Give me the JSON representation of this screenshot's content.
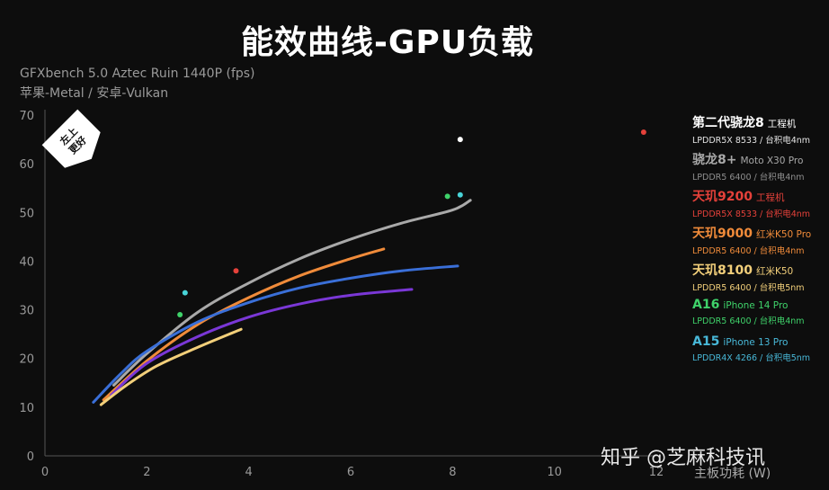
{
  "header": {
    "title": "能效曲线-GPU负载",
    "subtitle_line1": "GFXbench 5.0 Aztec Ruin 1440P (fps)",
    "subtitle_line2": "苹果-Metal / 安卓-Vulkan"
  },
  "badge": {
    "line1": "左上",
    "line2": "更好"
  },
  "watermark": "知乎 @芝麻科技讯",
  "chart_data": {
    "type": "scatter",
    "title": "能效曲线-GPU负载",
    "xlabel": "主板功耗 (W)",
    "ylabel": "",
    "xlim": [
      0,
      12
    ],
    "ylim": [
      0,
      70
    ],
    "xticks": [
      0,
      2,
      4,
      6,
      8,
      10,
      12
    ],
    "yticks": [
      0,
      10,
      20,
      30,
      40,
      50,
      60,
      70
    ],
    "grid": false,
    "legend_position": "right",
    "series": [
      {
        "name": "骁龙8+",
        "color": "#a9a9a9",
        "kind": "curve",
        "points": [
          [
            1.35,
            14.5
          ],
          [
            2.0,
            21.0
          ],
          [
            3.0,
            29.5
          ],
          [
            4.0,
            35.5
          ],
          [
            5.0,
            40.5
          ],
          [
            6.0,
            44.5
          ],
          [
            7.0,
            47.8
          ],
          [
            8.0,
            50.5
          ],
          [
            8.35,
            52.5
          ]
        ]
      },
      {
        "name": "天玑9000",
        "color": "#f08b3a",
        "kind": "curve",
        "points": [
          [
            1.15,
            11.5
          ],
          [
            2.0,
            19.5
          ],
          [
            3.0,
            27.0
          ],
          [
            4.0,
            32.5
          ],
          [
            5.0,
            37.0
          ],
          [
            6.0,
            40.5
          ],
          [
            6.65,
            42.5
          ]
        ]
      },
      {
        "name": "天玑9200",
        "color": "#3a6fd8",
        "kind": "curve",
        "points": [
          [
            0.95,
            11.0
          ],
          [
            1.5,
            17.0
          ],
          [
            2.0,
            21.5
          ],
          [
            3.0,
            27.5
          ],
          [
            4.0,
            31.5
          ],
          [
            5.0,
            34.5
          ],
          [
            6.0,
            36.5
          ],
          [
            7.0,
            38.0
          ],
          [
            8.1,
            39.0
          ]
        ]
      },
      {
        "name": "purple",
        "color": "#7a37d6",
        "kind": "curve",
        "points": [
          [
            1.3,
            12.5
          ],
          [
            2.0,
            19.0
          ],
          [
            3.0,
            24.5
          ],
          [
            4.0,
            28.5
          ],
          [
            5.0,
            31.2
          ],
          [
            6.0,
            33.0
          ],
          [
            7.2,
            34.2
          ]
        ]
      },
      {
        "name": "天玑8100",
        "color": "#f2cf7a",
        "kind": "curve",
        "points": [
          [
            1.1,
            10.5
          ],
          [
            1.6,
            14.5
          ],
          [
            2.2,
            18.5
          ],
          [
            3.0,
            22.3
          ],
          [
            3.85,
            26.0
          ]
        ]
      },
      {
        "name": "第二代骁龙8",
        "color": "#ffffff",
        "kind": "point",
        "points": [
          [
            8.15,
            65.0
          ]
        ]
      },
      {
        "name": "天玑9200 工程机",
        "color": "#e5413a",
        "kind": "point",
        "points": [
          [
            3.75,
            38.0
          ],
          [
            11.75,
            66.5
          ]
        ]
      },
      {
        "name": "A16",
        "color": "#3fd26a",
        "kind": "point",
        "points": [
          [
            2.65,
            29.0
          ],
          [
            7.9,
            53.3
          ]
        ]
      },
      {
        "name": "A15",
        "color": "#48d4d8",
        "kind": "point",
        "points": [
          [
            2.75,
            33.5
          ],
          [
            8.15,
            53.6
          ]
        ]
      }
    ]
  },
  "legend": [
    {
      "name": "第二代骁龙8",
      "model": "工程机",
      "spec": "LPDDR5X 8533 / 台积电4nm",
      "name_color": "#ffffff",
      "model_color": "#ffffff",
      "spec_color": "#e6e6e6"
    },
    {
      "name": "骁龙8+",
      "model": "Moto X30 Pro",
      "spec": "LPDDR5 6400 / 台积电4nm",
      "name_color": "#a9a9a9",
      "model_color": "#a9a9a9",
      "spec_color": "#8f8f8f"
    },
    {
      "name": "天玑9200",
      "model": "工程机",
      "spec": "LPDDR5X 8533 / 台积电4nm",
      "name_color": "#e5413a",
      "model_color": "#e5413a",
      "spec_color": "#e5413a"
    },
    {
      "name": "天玑9000",
      "model": "红米K50 Pro",
      "spec": "LPDDR5 6400 / 台积电4nm",
      "name_color": "#f08b3a",
      "model_color": "#f08b3a",
      "spec_color": "#f08b3a"
    },
    {
      "name": "天玑8100",
      "model": "红米K50",
      "spec": "LPDDR5 6400 / 台积电5nm",
      "name_color": "#f2cf7a",
      "model_color": "#f2cf7a",
      "spec_color": "#f2cf7a"
    },
    {
      "name": "A16",
      "model": "iPhone 14 Pro",
      "spec": "LPDDR5 6400 / 台积电4nm",
      "name_color": "#3fd26a",
      "model_color": "#3fd26a",
      "spec_color": "#3fd26a"
    },
    {
      "name": "A15",
      "model": "iPhone 13 Pro",
      "spec": "LPDDR4X 4266 / 台积电5nm",
      "name_color": "#48b8d8",
      "model_color": "#48b8d8",
      "spec_color": "#48b8d8"
    }
  ]
}
